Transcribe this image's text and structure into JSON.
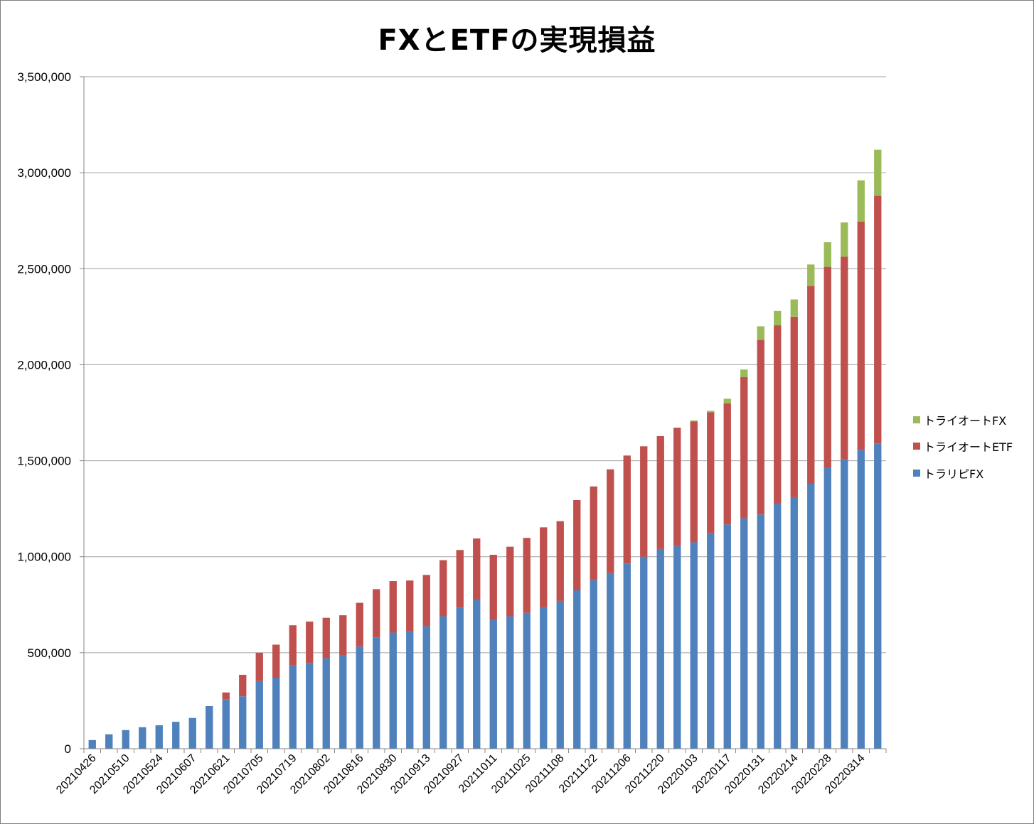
{
  "chart_data": {
    "type": "bar",
    "stacked": true,
    "title": "FXとETFの実現損益",
    "xlabel": "",
    "ylabel": "",
    "ylim": [
      0,
      3500000
    ],
    "yticks": [
      0,
      500000,
      1000000,
      1500000,
      2000000,
      2500000,
      3000000,
      3500000
    ],
    "ytick_labels": [
      "0",
      "500,000",
      "1,000,000",
      "1,500,000",
      "2,000,000",
      "2,500,000",
      "3,000,000",
      "3,500,000"
    ],
    "grid": true,
    "legend_position": "right",
    "xtick_labels": [
      "20210426",
      "20210510",
      "20210524",
      "20210607",
      "20210621",
      "20210705",
      "20210719",
      "20210802",
      "20210816",
      "20210830",
      "20210913",
      "20210927",
      "20211011",
      "20211025",
      "20211108",
      "20211122",
      "20211206",
      "20211220",
      "20220103",
      "20220117",
      "20220131",
      "20220214",
      "20220228",
      "20220314"
    ],
    "categories": [
      "20210426",
      "20210503",
      "20210510",
      "20210517",
      "20210524",
      "20210531",
      "20210607",
      "20210614",
      "20210621",
      "20210628",
      "20210705",
      "20210712",
      "20210719",
      "20210726",
      "20210802",
      "20210809",
      "20210816",
      "20210823",
      "20210830",
      "20210906",
      "20210913",
      "20210920",
      "20210927",
      "20211004",
      "20211011",
      "20211018",
      "20211025",
      "20211101",
      "20211108",
      "20211115",
      "20211122",
      "20211129",
      "20211206",
      "20211213",
      "20211220",
      "20211227",
      "20220103",
      "20220110",
      "20220117",
      "20220124",
      "20220131",
      "20220207",
      "20220214",
      "20220221",
      "20220228",
      "20220307",
      "20220314",
      "20220321"
    ],
    "series": [
      {
        "name": "トラリピFX",
        "color": "#4F81BD",
        "values": [
          45000,
          75000,
          97000,
          112000,
          122000,
          140000,
          160000,
          222000,
          258000,
          273000,
          352000,
          370000,
          435000,
          447000,
          472000,
          485000,
          532000,
          578000,
          605000,
          610000,
          638000,
          690000,
          735000,
          775000,
          670000,
          690000,
          708000,
          738000,
          770000,
          825000,
          878000,
          915000,
          965000,
          1000000,
          1040000,
          1055000,
          1075000,
          1122000,
          1168000,
          1200000,
          1220000,
          1275000,
          1310000,
          1380000,
          1465000,
          1508000,
          1555000,
          1590000
        ]
      },
      {
        "name": "トライオートETF",
        "color": "#C0504D",
        "values": [
          0,
          0,
          0,
          0,
          0,
          0,
          0,
          0,
          35000,
          112000,
          148000,
          172000,
          208000,
          215000,
          210000,
          210000,
          228000,
          253000,
          268000,
          266000,
          267000,
          292000,
          300000,
          320000,
          340000,
          362000,
          390000,
          415000,
          415000,
          470000,
          488000,
          540000,
          562000,
          575000,
          588000,
          617000,
          630000,
          630000,
          630000,
          735000,
          910000,
          930000,
          940000,
          1030000,
          1045000,
          1055000,
          1190000,
          1290000
        ]
      },
      {
        "name": "トライオートFX",
        "color": "#9BBB59",
        "values": [
          0,
          0,
          0,
          0,
          0,
          0,
          0,
          0,
          0,
          0,
          0,
          0,
          0,
          0,
          0,
          0,
          0,
          0,
          0,
          0,
          0,
          0,
          0,
          0,
          0,
          0,
          0,
          0,
          0,
          0,
          0,
          0,
          0,
          0,
          0,
          0,
          5000,
          8000,
          25000,
          40000,
          70000,
          75000,
          90000,
          112000,
          128000,
          178000,
          215000,
          240000
        ]
      }
    ],
    "legend_order": [
      "トライオートFX",
      "トライオートETF",
      "トラリピFX"
    ]
  },
  "colors": {
    "grid": "#A0A0A0",
    "axis": "#868686",
    "border": "#7F7F7F"
  }
}
